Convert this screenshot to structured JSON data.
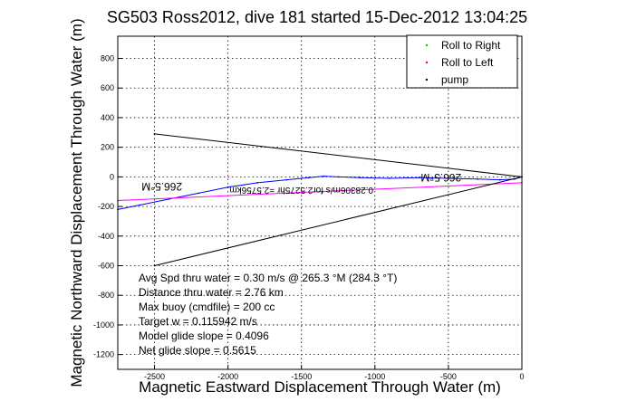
{
  "chart_data": {
    "type": "line",
    "title": "SG503 Ross2012, dive 181 started 15-Dec-2012 13:04:25",
    "xlabel": "Magnetic Eastward Displacement Through Water (m)",
    "ylabel": "Magnetic Northward Displacement Through Water (m)",
    "xlim": [
      -2750,
      0
    ],
    "ylim": [
      -1300,
      950
    ],
    "xticks": [
      -2500,
      -2000,
      -1500,
      -1000,
      -500,
      0
    ],
    "yticks": [
      -1200,
      -1000,
      -800,
      -600,
      -400,
      -200,
      0,
      200,
      400,
      600,
      800
    ],
    "grid": true,
    "legend_position": "top-right",
    "legend": [
      {
        "label": "Roll to Right",
        "color": "#00cc00"
      },
      {
        "label": "Roll to Left",
        "color": "#ff0000"
      },
      {
        "label": "pump",
        "color": "#000000"
      }
    ],
    "series": [
      {
        "color": "#0000ff",
        "x": [
          0,
          -50,
          -150,
          -300,
          -500,
          -700,
          -900,
          -1100,
          -1250,
          -1350,
          -1450,
          -1600,
          -1800,
          -2000,
          -2200,
          -2400,
          -2600,
          -2750
        ],
        "y": [
          0,
          -15,
          -20,
          -15,
          -10,
          -5,
          -10,
          -5,
          0,
          5,
          -5,
          -20,
          -40,
          -70,
          -110,
          -150,
          -190,
          -220
        ]
      },
      {
        "color": "#ff00ff",
        "x": [
          0,
          -2750
        ],
        "y": [
          -40,
          -160
        ]
      },
      {
        "color": "#000000",
        "x": [
          -2500,
          0,
          -2500
        ],
        "y": [
          290,
          0,
          -600
        ]
      }
    ],
    "annotations": [
      {
        "text": "266.5°M",
        "x": -2450,
        "y": -40,
        "rotation": 180,
        "size": 12
      },
      {
        "text": "266.5°M",
        "x": -550,
        "y": 20,
        "rotation": 180,
        "size": 12
      },
      {
        "text": "0.28306m/s for2.5275hr =2.5756km",
        "x": -1500,
        "y": -70,
        "rotation": 180,
        "size": 10
      }
    ],
    "stats": [
      "Avg Spd thru water =  0.30 m/s @ 265.3    °M (284.3 °T)",
      "Distance thru water =  2.76 km",
      "Max buoy (cmdfile) = 200 cc",
      "Target w = 0.115942 m/s",
      "Model glide slope = 0.4096",
      "Net glide slope = 0.5615"
    ]
  }
}
